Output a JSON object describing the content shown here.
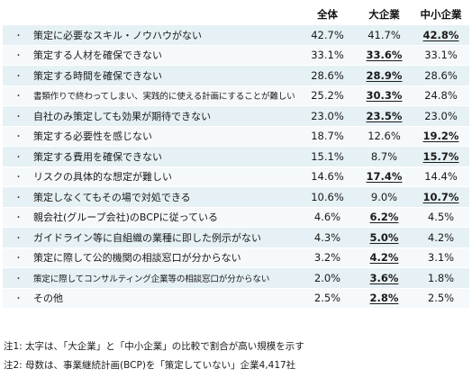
{
  "headers": {
    "label": "",
    "all": "全体",
    "large": "大企業",
    "sme": "中小企業"
  },
  "bullet": "・",
  "rows": [
    {
      "label": "策定に必要なスキル・ノウハウがない",
      "all": "42.7%",
      "large": "41.7%",
      "sme": "42.8%",
      "highlight": "sme"
    },
    {
      "label": "策定する人材を確保できない",
      "all": "33.1%",
      "large": "33.6%",
      "sme": "33.1%",
      "highlight": "large"
    },
    {
      "label": "策定する時間を確保できない",
      "all": "28.6%",
      "large": "28.9%",
      "sme": "28.6%",
      "highlight": "large"
    },
    {
      "label": "書類作りで終わってしまい、実践的に使える計画にすることが難しい",
      "all": "25.2%",
      "large": "30.3%",
      "sme": "24.8%",
      "highlight": "large",
      "small": true
    },
    {
      "label": "自社のみ策定しても効果が期待できない",
      "all": "23.0%",
      "large": "23.5%",
      "sme": "23.0%",
      "highlight": "large"
    },
    {
      "label": "策定する必要性を感じない",
      "all": "18.7%",
      "large": "12.6%",
      "sme": "19.2%",
      "highlight": "sme"
    },
    {
      "label": "策定する費用を確保できない",
      "all": "15.1%",
      "large": "8.7%",
      "sme": "15.7%",
      "highlight": "sme"
    },
    {
      "label": "リスクの具体的な想定が難しい",
      "all": "14.6%",
      "large": "17.4%",
      "sme": "14.4%",
      "highlight": "large"
    },
    {
      "label": "策定しなくてもその場で対処できる",
      "all": "10.6%",
      "large": "9.0%",
      "sme": "10.7%",
      "highlight": "sme"
    },
    {
      "label": "親会社(グループ会社)のBCPに従っている",
      "all": "4.6%",
      "large": "6.2%",
      "sme": "4.5%",
      "highlight": "large"
    },
    {
      "label": "ガイドライン等に自組織の業種に即した例示がない",
      "all": "4.3%",
      "large": "5.0%",
      "sme": "4.2%",
      "highlight": "large"
    },
    {
      "label": "策定に際して公的機関の相談窓口が分からない",
      "all": "3.2%",
      "large": "4.2%",
      "sme": "3.1%",
      "highlight": "large"
    },
    {
      "label": "策定に際してコンサルティング企業等の相談窓口が分からない",
      "all": "2.0%",
      "large": "3.6%",
      "sme": "1.8%",
      "highlight": "large",
      "small": true
    },
    {
      "label": "その他",
      "all": "2.5%",
      "large": "2.8%",
      "sme": "2.5%",
      "highlight": "large"
    }
  ],
  "notes": [
    "注1: 太字は、「大企業」と「中小企業」の比較で割合が高い規模を示す",
    "注2: 母数は、事業継続計画(BCP)を「策定していない」企業4,417社"
  ]
}
